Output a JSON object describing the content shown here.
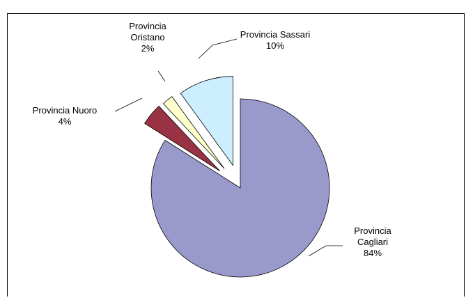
{
  "chart_data": {
    "type": "pie",
    "title": "",
    "legend": "none",
    "exploded": true,
    "slices": [
      {
        "label": "Provincia Cagliari",
        "value": 84,
        "percent_label": "84%",
        "color": "#9999CC"
      },
      {
        "label": "Provincia Nuoro",
        "value": 4,
        "percent_label": "4%",
        "color": "#993344"
      },
      {
        "label": "Provincia Oristano",
        "value": 2,
        "percent_label": "2%",
        "color": "#FFFFCC"
      },
      {
        "label": "Provincia Sassari",
        "value": 10,
        "percent_label": "10%",
        "color": "#CCEEFF"
      }
    ]
  }
}
